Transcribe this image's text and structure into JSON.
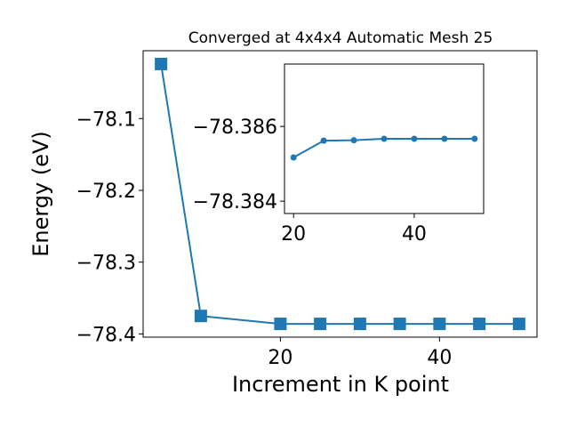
{
  "chart_data": [
    {
      "type": "line",
      "title": "Converged at 4x4x4 Automatic Mesh 25",
      "xlabel": "Increment in K point",
      "ylabel": "Energy (eV)",
      "x": [
        5,
        10,
        20,
        25,
        30,
        35,
        40,
        45,
        50
      ],
      "series": [
        {
          "color": "#1f77b4",
          "marker": "square",
          "values": [
            -78.024,
            -78.375,
            -78.386,
            -78.386,
            -78.386,
            -78.386,
            -78.386,
            -78.386,
            -78.386
          ]
        }
      ],
      "xlim": [
        2.75,
        52.25
      ],
      "xticks": [
        20,
        40
      ],
      "ylim": [
        -78.4045,
        -78.0055
      ],
      "yticks": [
        {
          "value": -78.1,
          "label": "−78.1"
        },
        {
          "value": -78.2,
          "label": "−78.2"
        },
        {
          "value": -78.3,
          "label": "−78.3"
        },
        {
          "value": -78.4,
          "label": "−78.4"
        }
      ]
    },
    {
      "type": "line",
      "x": [
        20,
        25,
        30,
        35,
        40,
        45,
        50
      ],
      "series": [
        {
          "color": "#1f77b4",
          "marker": "circle",
          "values": [
            -78.38517,
            -78.38562,
            -78.38563,
            -78.38567,
            -78.38567,
            -78.38567,
            -78.38567
          ]
        }
      ],
      "xlim": [
        18.5,
        51.5
      ],
      "xticks": [
        20,
        40
      ],
      "ylim": [
        -78.38367,
        -78.38767
      ],
      "yticks": [
        {
          "value": -78.386,
          "label": "−78.386"
        },
        {
          "value": -78.384,
          "label": "−78.384"
        }
      ]
    }
  ]
}
